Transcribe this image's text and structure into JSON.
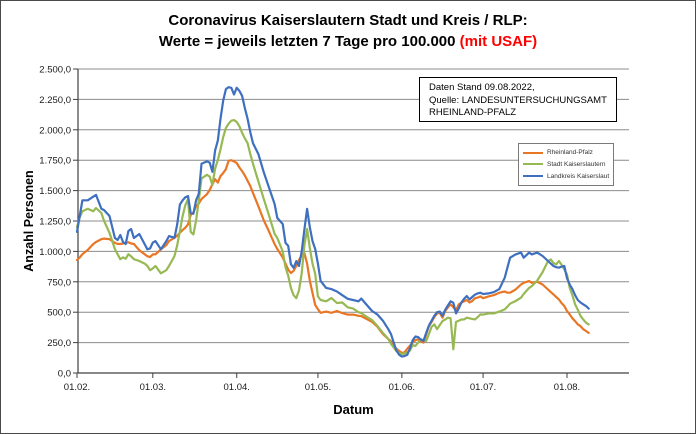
{
  "title": {
    "line1": "Coronavirus Kaiserslautern Stadt und Kreis / RLP:",
    "line2_prefix": "Werte = jeweils letzten 7 Tage pro 100.000 ",
    "line2_highlight": "(mit USAF)",
    "highlight_color": "#ff0000"
  },
  "info_box": {
    "line1": "Daten Stand 09.08.2022,",
    "line2": "Quelle: LANDESUNTERSUCHUNGSAMT",
    "line3": "RHEINLAND-PFALZ"
  },
  "legend": {
    "items": [
      {
        "label": "Rheinland-Pfalz",
        "color": "#e97624"
      },
      {
        "label": "Stadt Kaiserslautern",
        "color": "#97b953"
      },
      {
        "label": "Landkreis Kaiserslautern",
        "color": "#3f6fbf"
      }
    ]
  },
  "axes": {
    "y_label": "Anzahl Personen",
    "x_label": "Datum",
    "y_tick_labels": [
      "0,0",
      "250,0",
      "500,0",
      "750,0",
      "1.000,0",
      "1.250,0",
      "1.500,0",
      "1.750,0",
      "2.000,0",
      "2.250,0",
      "2.500,0"
    ],
    "x_tick_labels": [
      "01.02.",
      "01.03.",
      "01.04.",
      "01.05.",
      "01.06.",
      "01.07.",
      "01.08."
    ]
  },
  "chart_data": {
    "type": "line",
    "title": "Coronavirus Kaiserslautern Stadt und Kreis / RLP: Werte = jeweils letzten 7 Tage pro 100.000 (mit USAF)",
    "xlabel": "Datum",
    "ylabel": "Anzahl Personen",
    "ylim": [
      0,
      2500
    ],
    "y_tick_step": 250,
    "grid": true,
    "legend_position": "right-inside",
    "x_unit": "days_since_2022-02-01",
    "x_tick_days": [
      0,
      28,
      59,
      89,
      120,
      150,
      181
    ],
    "x_tick_labels": [
      "01.02.",
      "01.03.",
      "01.04.",
      "01.05.",
      "01.06.",
      "01.07.",
      "01.08."
    ],
    "x": [
      0,
      1,
      2,
      4,
      6,
      7,
      9,
      10,
      12,
      14,
      15,
      16,
      17,
      18,
      19,
      20,
      21,
      23,
      25,
      26,
      27,
      28,
      29,
      31,
      33,
      34,
      36,
      37,
      38,
      39,
      40,
      41,
      42,
      43,
      44,
      45,
      46,
      48,
      49,
      50,
      51,
      52,
      53,
      54,
      55,
      56,
      57,
      58,
      59,
      60,
      61,
      62,
      63,
      64,
      65,
      67,
      69,
      71,
      73,
      74,
      75,
      76,
      77,
      78,
      79,
      80,
      81,
      82,
      83,
      84,
      85,
      86,
      87,
      88,
      89,
      90,
      92,
      94,
      96,
      98,
      100,
      102,
      104,
      105,
      107,
      109,
      111,
      113,
      115,
      116,
      117,
      118,
      119,
      120,
      121,
      122,
      123,
      124,
      125,
      126,
      127,
      128,
      129,
      130,
      131,
      132,
      133,
      134,
      135,
      136,
      137,
      138,
      139,
      140,
      141,
      142,
      143,
      144,
      145,
      146,
      147,
      148,
      149,
      150,
      152,
      154,
      156,
      158,
      159,
      160,
      162,
      164,
      165,
      167,
      168,
      170,
      172,
      174,
      175,
      176,
      177,
      178,
      179,
      180,
      181,
      182,
      183,
      184,
      185,
      186,
      187,
      188,
      189
    ],
    "series": [
      {
        "name": "Rheinland-Pfalz",
        "color": "#e97624",
        "values": [
          929,
          950,
          977,
          1012,
          1060,
          1077,
          1100,
          1105,
          1100,
          1070,
          1062,
          1061,
          1065,
          1070,
          1075,
          1065,
          1061,
          1010,
          976,
          960,
          954,
          975,
          976,
          1017,
          1052,
          1085,
          1112,
          1130,
          1154,
          1175,
          1195,
          1222,
          1300,
          1320,
          1373,
          1395,
          1430,
          1470,
          1505,
          1553,
          1594,
          1566,
          1619,
          1645,
          1677,
          1745,
          1750,
          1740,
          1727,
          1690,
          1660,
          1625,
          1580,
          1538,
          1480,
          1370,
          1255,
          1160,
          1060,
          1020,
          985,
          950,
          900,
          850,
          822,
          840,
          880,
          930,
          965,
          987,
          900,
          760,
          658,
          560,
          525,
          495,
          505,
          495,
          510,
          493,
          480,
          480,
          470,
          468,
          444,
          420,
          380,
          320,
          280,
          260,
          222,
          200,
          181,
          165,
          170,
          200,
          225,
          250,
          270,
          277,
          260,
          250,
          318,
          386,
          420,
          460,
          490,
          495,
          455,
          510,
          540,
          564,
          540,
          515,
          564,
          578,
          590,
          600,
          580,
          592,
          615,
          620,
          630,
          615,
          630,
          641,
          660,
          670,
          660,
          660,
          687,
          728,
          742,
          756,
          742,
          750,
          728,
          687,
          665,
          646,
          625,
          605,
          575,
          551,
          510,
          482,
          450,
          427,
          400,
          386,
          360,
          345,
          330
        ]
      },
      {
        "name": "Stadt Kaiserslautern",
        "color": "#97b953",
        "values": [
          1200,
          1280,
          1330,
          1350,
          1330,
          1357,
          1316,
          1250,
          1152,
          1020,
          977,
          936,
          951,
          940,
          977,
          960,
          936,
          921,
          900,
          880,
          845,
          860,
          880,
          820,
          845,
          880,
          962,
          1050,
          1167,
          1290,
          1380,
          1430,
          1160,
          1140,
          1255,
          1420,
          1600,
          1630,
          1615,
          1545,
          1680,
          1750,
          1840,
          1940,
          2015,
          2050,
          2075,
          2080,
          2065,
          2030,
          1975,
          1930,
          1890,
          1800,
          1720,
          1575,
          1430,
          1290,
          1145,
          1110,
          1055,
          1000,
          870,
          800,
          700,
          640,
          615,
          680,
          820,
          1050,
          1185,
          1030,
          900,
          815,
          630,
          600,
          590,
          617,
          576,
          580,
          540,
          530,
          500,
          493,
          462,
          435,
          386,
          330,
          280,
          240,
          210,
          180,
          165,
          156,
          160,
          170,
          185,
          230,
          222,
          250,
          277,
          270,
          263,
          320,
          380,
          400,
          360,
          395,
          427,
          440,
          455,
          450,
          195,
          420,
          430,
          440,
          441,
          455,
          450,
          445,
          441,
          460,
          482,
          480,
          490,
          490,
          505,
          523,
          545,
          570,
          592,
          619,
          650,
          700,
          715,
          760,
          830,
          920,
          934,
          905,
          893,
          921,
          890,
          852,
          810,
          700,
          640,
          565,
          520,
          470,
          440,
          414,
          400
        ]
      },
      {
        "name": "Landkreis Kaiserslautern",
        "color": "#3f6fbf",
        "values": [
          1160,
          1290,
          1420,
          1420,
          1450,
          1465,
          1350,
          1340,
          1291,
          1110,
          1094,
          1135,
          1077,
          1061,
          1168,
          1184,
          1110,
          1143,
          1058,
          1017,
          1025,
          1072,
          1085,
          1017,
          1085,
          1126,
          1112,
          1222,
          1386,
          1419,
          1445,
          1455,
          1316,
          1310,
          1420,
          1475,
          1720,
          1740,
          1730,
          1655,
          1830,
          1910,
          2090,
          2240,
          2335,
          2350,
          2345,
          2290,
          2345,
          2320,
          2280,
          2180,
          2090,
          1980,
          1890,
          1800,
          1650,
          1520,
          1390,
          1275,
          1250,
          1225,
          1070,
          1045,
          895,
          865,
          920,
          880,
          1000,
          1180,
          1350,
          1200,
          1085,
          1020,
          900,
          757,
          700,
          690,
          670,
          640,
          610,
          600,
          590,
          612,
          560,
          510,
          480,
          430,
          360,
          320,
          250,
          185,
          150,
          135,
          140,
          150,
          205,
          270,
          300,
          295,
          275,
          265,
          330,
          390,
          430,
          470,
          500,
          505,
          470,
          520,
          555,
          590,
          578,
          490,
          530,
          580,
          610,
          633,
          605,
          625,
          645,
          655,
          660,
          650,
          655,
          665,
          690,
          783,
          866,
          948,
          975,
          990,
          948,
          990,
          975,
          990,
          962,
          921,
          900,
          880,
          870,
          866,
          875,
          880,
          780,
          728,
          690,
          640,
          600,
          580,
          565,
          550,
          530
        ]
      }
    ]
  }
}
